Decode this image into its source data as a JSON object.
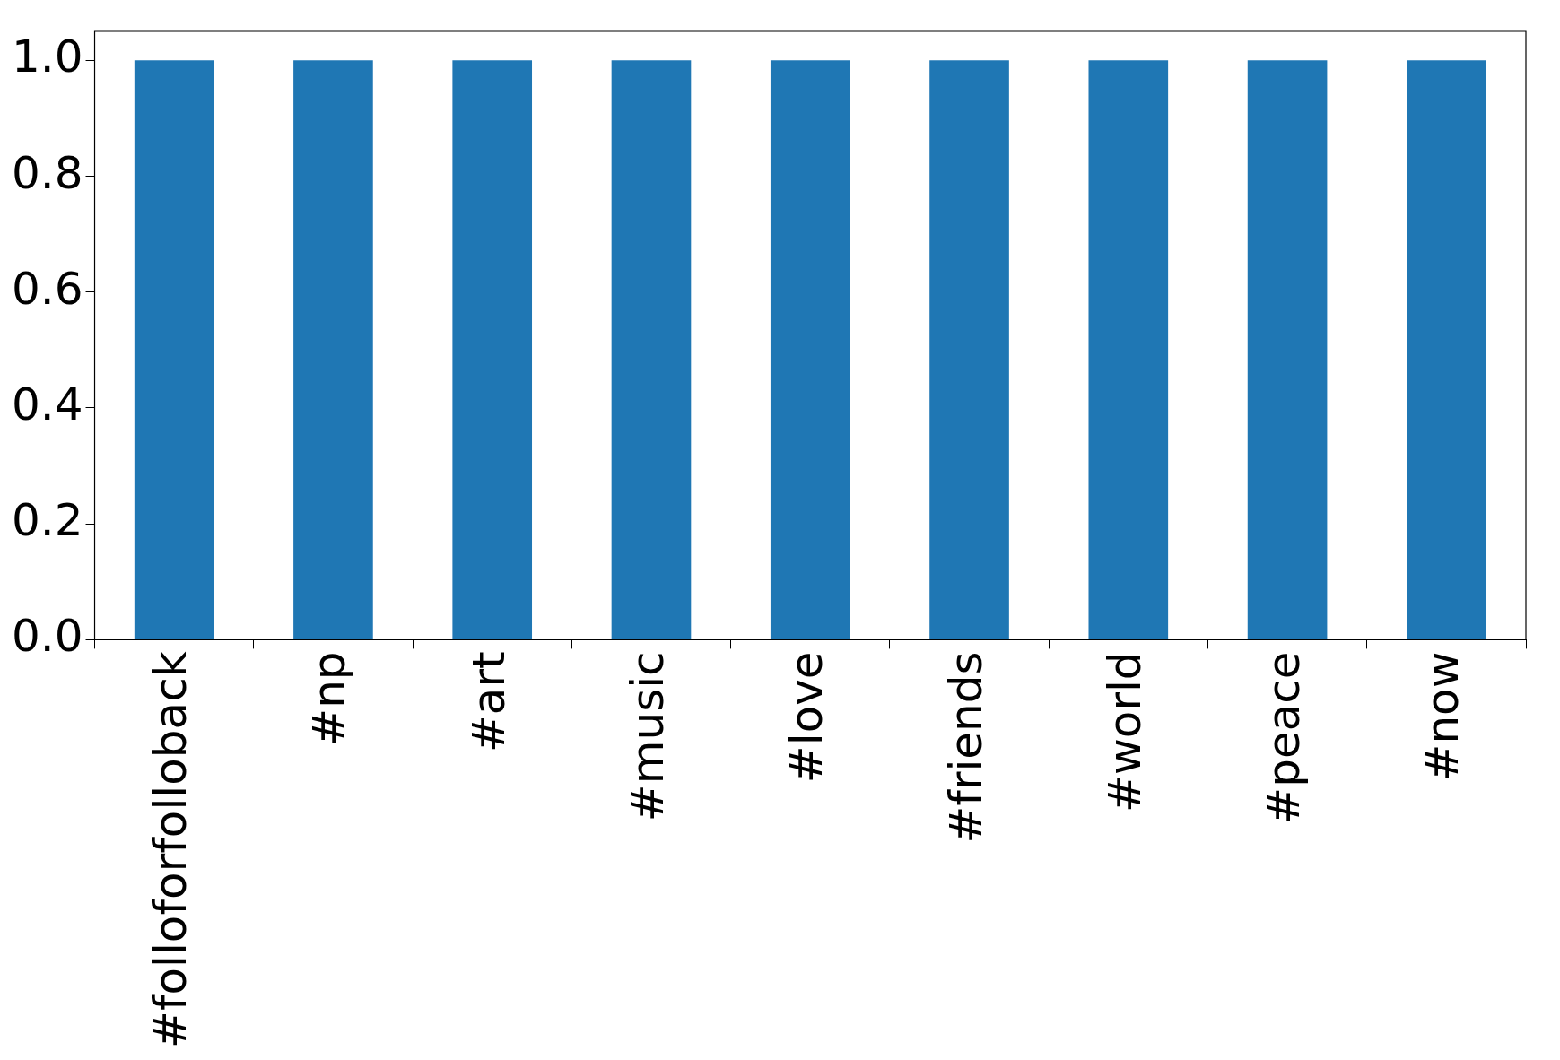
{
  "chart_data": {
    "type": "bar",
    "categories": [
      "#folloforfolloback",
      "#np",
      "#art",
      "#music",
      "#love",
      "#friends",
      "#world",
      "#peace",
      "#now"
    ],
    "values": [
      1,
      1,
      1,
      1,
      1,
      1,
      1,
      1,
      1
    ],
    "color": "#1f77b4",
    "ylim": [
      0,
      1.05
    ],
    "yticks": [
      {
        "value": 0,
        "label": "0.0"
      },
      {
        "value": 0.2,
        "label": "0.2"
      },
      {
        "value": 0.4,
        "label": "0.4"
      },
      {
        "value": 0.6,
        "label": "0.6"
      },
      {
        "value": 0.8,
        "label": "0.8"
      },
      {
        "value": 1,
        "label": "1.0"
      }
    ],
    "grid": false,
    "legend": false
  }
}
